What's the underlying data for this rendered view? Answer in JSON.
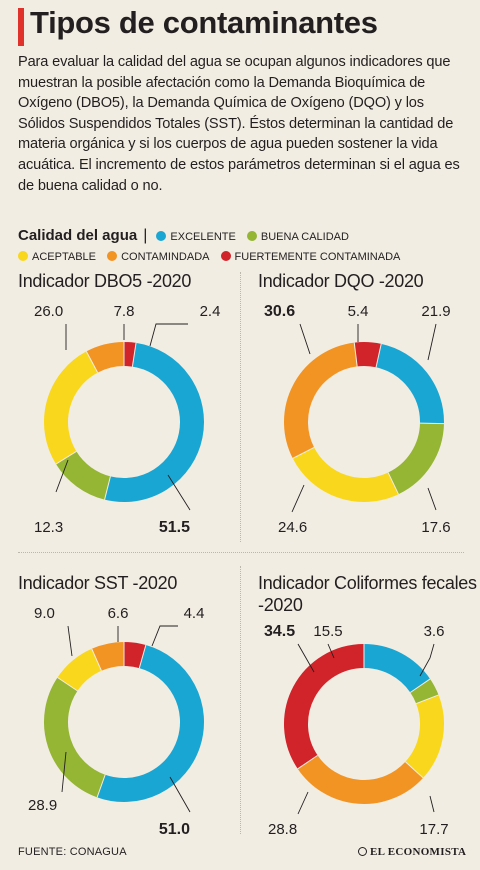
{
  "title": "Tipos de contaminantes",
  "intro": "Para evaluar la calidad del agua se ocupan algunos indicadores que muestran la posible afectación como la Demanda Bioquímica de Oxígeno (DBO5), la Demanda Química de Oxígeno (DQO) y los Sólidos Suspendidos Totales (SST). Éstos determinan la cantidad de materia orgánica y si los cuerpos de agua pueden sostener la vida acuática. El incremento de estos parámetros determinan si el agua es de buena calidad o no.",
  "legend": {
    "title": "Calidad del agua",
    "separator": "|",
    "items": [
      {
        "label": "EXCELENTE",
        "color": "#1aa6d3"
      },
      {
        "label": "BUENA CALIDAD",
        "color": "#95b534"
      },
      {
        "label": "ACEPTABLE",
        "color": "#f9d71c"
      },
      {
        "label": "CONTAMINDADA",
        "color": "#f29423"
      },
      {
        "label": "FUERTEMENTE CONTAMINADA",
        "color": "#d1232a"
      }
    ]
  },
  "chart_data": [
    {
      "type": "pie",
      "title": "Indicador DBO5 -2020",
      "categories": [
        "EXCELENTE",
        "BUENA CALIDAD",
        "ACEPTABLE",
        "CONTAMINDADA",
        "FUERTEMENTE CONTAMINADA"
      ],
      "values": [
        51.5,
        12.3,
        26.0,
        7.8,
        2.4
      ],
      "labels": [
        "51.5",
        "12.3",
        "26.0",
        "7.8",
        "2.4"
      ],
      "bold": [
        true,
        false,
        false,
        false,
        false
      ]
    },
    {
      "type": "pie",
      "title": "Indicador DQO -2020",
      "categories": [
        "EXCELENTE",
        "BUENA CALIDAD",
        "ACEPTABLE",
        "CONTAMINDADA",
        "FUERTEMENTE CONTAMINADA"
      ],
      "values": [
        21.9,
        17.6,
        24.6,
        30.6,
        5.4
      ],
      "labels": [
        "21.9",
        "17.6",
        "24.6",
        "30.6",
        "5.4"
      ],
      "bold": [
        false,
        false,
        false,
        true,
        false
      ]
    },
    {
      "type": "pie",
      "title": "Indicador SST -2020",
      "categories": [
        "EXCELENTE",
        "BUENA CALIDAD",
        "ACEPTABLE",
        "CONTAMINDADA",
        "FUERTEMENTE CONTAMINADA"
      ],
      "values": [
        51.0,
        28.9,
        9.0,
        6.6,
        4.4
      ],
      "labels": [
        "51.0",
        "28.9",
        "9.0",
        "6.6",
        "4.4"
      ],
      "bold": [
        true,
        false,
        false,
        false,
        false
      ]
    },
    {
      "type": "pie",
      "title": "Indicador Coliformes fecales -2020",
      "categories": [
        "EXCELENTE",
        "BUENA CALIDAD",
        "ACEPTABLE",
        "CONTAMINDADA",
        "FUERTEMENTE CONTAMINADA"
      ],
      "values": [
        15.5,
        3.6,
        17.7,
        28.8,
        34.5
      ],
      "labels": [
        "15.5",
        "3.6",
        "17.7",
        "28.8",
        "34.5"
      ],
      "bold": [
        false,
        false,
        false,
        false,
        true
      ]
    }
  ],
  "footer": {
    "source": "FUENTE: CONAGUA",
    "brand": "EL ECONOMISTA"
  }
}
